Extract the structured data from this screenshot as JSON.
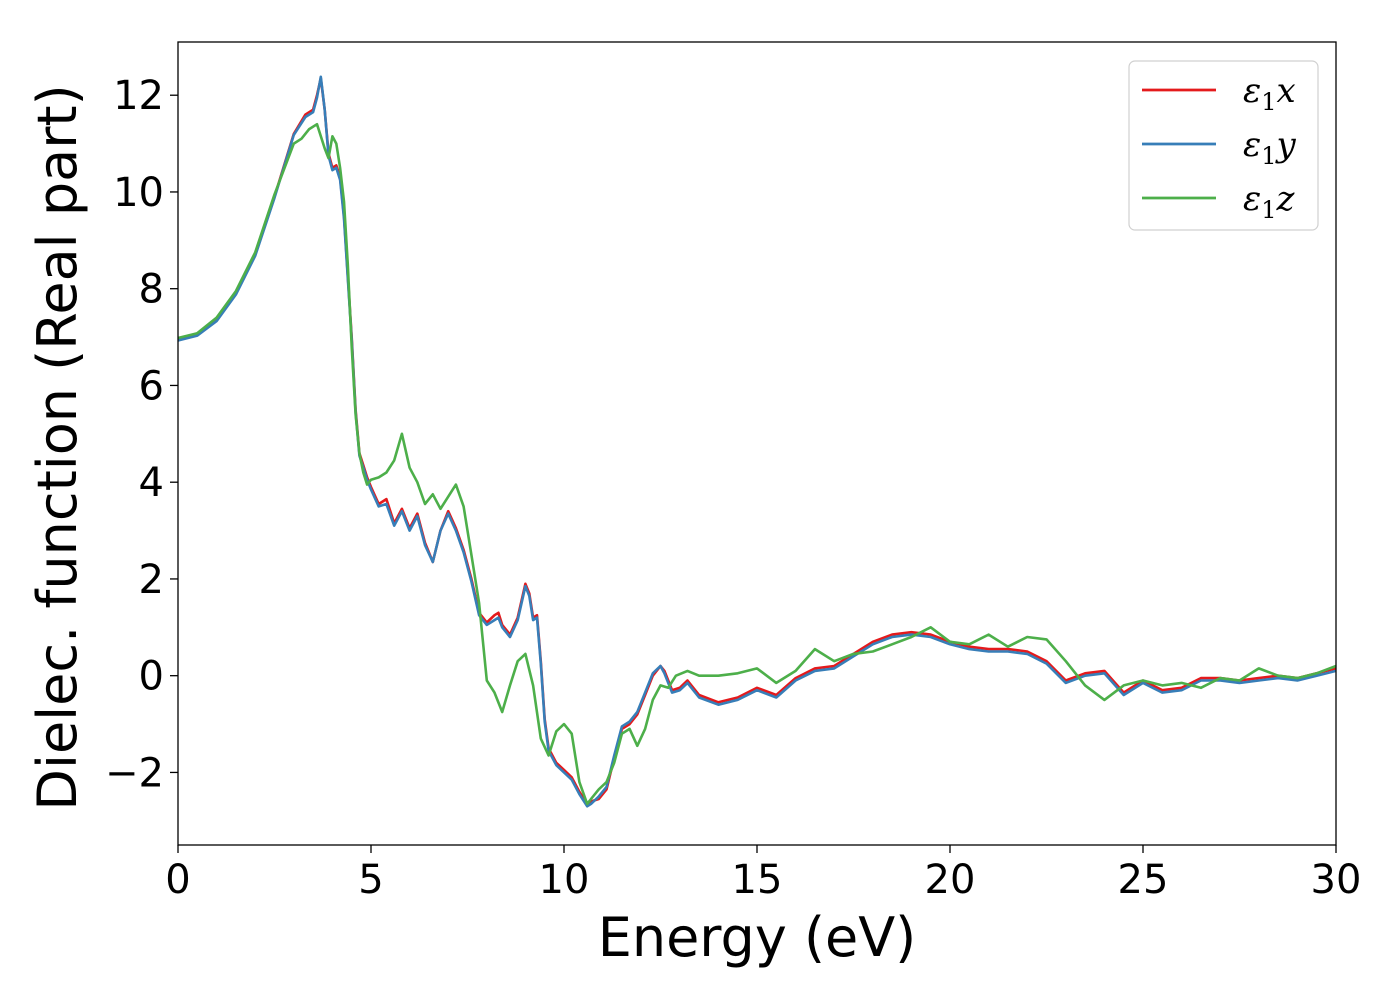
{
  "chart_data": {
    "type": "line",
    "title": "",
    "xlabel": "Energy (eV)",
    "ylabel": "Dielec. function (Real part)",
    "xlim": [
      0,
      30
    ],
    "ylim": [
      -3.5,
      13.1
    ],
    "xticks": [
      0,
      5,
      10,
      15,
      20,
      25,
      30
    ],
    "yticks": [
      -2,
      0,
      2,
      4,
      6,
      8,
      10,
      12
    ],
    "grid": false,
    "legend_position": "top-right",
    "series": [
      {
        "name": "ε1x",
        "symbol": "ε",
        "sub": "1",
        "axis": "x",
        "color": "#e41a1c",
        "x": [
          0,
          0.5,
          1,
          1.5,
          2,
          2.5,
          3,
          3.3,
          3.5,
          3.6,
          3.7,
          3.8,
          3.9,
          4.0,
          4.1,
          4.2,
          4.3,
          4.5,
          4.6,
          4.7,
          4.8,
          4.9,
          5.0,
          5.2,
          5.4,
          5.6,
          5.8,
          6.0,
          6.2,
          6.4,
          6.6,
          6.8,
          7.0,
          7.2,
          7.4,
          7.6,
          7.8,
          8.0,
          8.2,
          8.3,
          8.4,
          8.6,
          8.8,
          9.0,
          9.1,
          9.2,
          9.3,
          9.4,
          9.5,
          9.6,
          9.8,
          10.0,
          10.2,
          10.4,
          10.6,
          10.7,
          10.9,
          11.1,
          11.3,
          11.5,
          11.7,
          11.9,
          12.1,
          12.3,
          12.5,
          12.6,
          12.8,
          13.0,
          13.2,
          13.5,
          14.0,
          14.5,
          15.0,
          15.5,
          16.0,
          16.5,
          17.0,
          17.5,
          18.0,
          18.5,
          19.0,
          19.5,
          20.0,
          20.5,
          21.0,
          21.5,
          22.0,
          22.5,
          23.0,
          23.5,
          24.0,
          24.5,
          25.0,
          25.5,
          26.0,
          26.5,
          27.0,
          27.5,
          28.0,
          28.5,
          29.0,
          29.5,
          30.0
        ],
        "y": [
          6.95,
          7.05,
          7.35,
          7.9,
          8.7,
          9.9,
          11.2,
          11.6,
          11.7,
          12.0,
          12.35,
          11.7,
          10.8,
          10.5,
          10.55,
          10.3,
          9.5,
          7.0,
          5.5,
          4.6,
          4.35,
          4.1,
          3.9,
          3.55,
          3.65,
          3.15,
          3.45,
          3.05,
          3.35,
          2.75,
          2.35,
          3.0,
          3.4,
          3.05,
          2.6,
          2.0,
          1.3,
          1.1,
          1.25,
          1.3,
          1.05,
          0.85,
          1.2,
          1.9,
          1.7,
          1.2,
          1.25,
          0.3,
          -0.9,
          -1.5,
          -1.8,
          -1.95,
          -2.1,
          -2.4,
          -2.65,
          -2.6,
          -2.55,
          -2.35,
          -1.7,
          -1.1,
          -1.0,
          -0.8,
          -0.4,
          0.0,
          0.2,
          0.1,
          -0.3,
          -0.25,
          -0.1,
          -0.4,
          -0.55,
          -0.45,
          -0.25,
          -0.4,
          -0.05,
          0.15,
          0.2,
          0.45,
          0.7,
          0.85,
          0.9,
          0.85,
          0.7,
          0.6,
          0.55,
          0.55,
          0.5,
          0.3,
          -0.1,
          0.05,
          0.1,
          -0.35,
          -0.1,
          -0.3,
          -0.25,
          -0.05,
          -0.05,
          -0.1,
          -0.05,
          0.0,
          -0.05,
          0.05,
          0.15
        ]
      },
      {
        "name": "ε1y",
        "symbol": "ε",
        "sub": "1",
        "axis": "y",
        "color": "#377eb8",
        "x": [
          0,
          0.5,
          1,
          1.5,
          2,
          2.5,
          3,
          3.3,
          3.5,
          3.6,
          3.7,
          3.8,
          3.9,
          4.0,
          4.1,
          4.2,
          4.3,
          4.5,
          4.6,
          4.7,
          4.8,
          4.9,
          5.0,
          5.2,
          5.4,
          5.6,
          5.8,
          6.0,
          6.2,
          6.4,
          6.6,
          6.8,
          7.0,
          7.2,
          7.4,
          7.6,
          7.8,
          8.0,
          8.2,
          8.3,
          8.4,
          8.6,
          8.8,
          9.0,
          9.1,
          9.2,
          9.3,
          9.4,
          9.5,
          9.6,
          9.8,
          10.0,
          10.2,
          10.4,
          10.6,
          10.7,
          10.9,
          11.1,
          11.3,
          11.5,
          11.7,
          11.9,
          12.1,
          12.3,
          12.5,
          12.6,
          12.8,
          13.0,
          13.2,
          13.5,
          14.0,
          14.5,
          15.0,
          15.5,
          16.0,
          16.5,
          17.0,
          17.5,
          18.0,
          18.5,
          19.0,
          19.5,
          20.0,
          20.5,
          21.0,
          21.5,
          22.0,
          22.5,
          23.0,
          23.5,
          24.0,
          24.5,
          25.0,
          25.5,
          26.0,
          26.5,
          27.0,
          27.5,
          28.0,
          28.5,
          29.0,
          29.5,
          30.0
        ],
        "y": [
          6.93,
          7.03,
          7.33,
          7.88,
          8.68,
          9.88,
          11.18,
          11.55,
          11.65,
          11.95,
          12.38,
          11.7,
          10.75,
          10.45,
          10.5,
          10.25,
          9.45,
          6.95,
          5.45,
          4.55,
          4.3,
          4.05,
          3.85,
          3.5,
          3.55,
          3.1,
          3.4,
          3.0,
          3.3,
          2.7,
          2.35,
          3.0,
          3.35,
          3.0,
          2.55,
          1.95,
          1.25,
          1.05,
          1.15,
          1.2,
          1.0,
          0.8,
          1.15,
          1.85,
          1.65,
          1.15,
          1.2,
          0.25,
          -0.95,
          -1.55,
          -1.85,
          -2.0,
          -2.15,
          -2.45,
          -2.7,
          -2.65,
          -2.5,
          -2.3,
          -1.65,
          -1.05,
          -0.95,
          -0.75,
          -0.35,
          0.05,
          0.2,
          0.05,
          -0.35,
          -0.3,
          -0.15,
          -0.45,
          -0.6,
          -0.5,
          -0.3,
          -0.45,
          -0.1,
          0.1,
          0.15,
          0.4,
          0.65,
          0.8,
          0.85,
          0.8,
          0.65,
          0.55,
          0.5,
          0.5,
          0.45,
          0.25,
          -0.15,
          0.0,
          0.05,
          -0.4,
          -0.15,
          -0.35,
          -0.3,
          -0.1,
          -0.1,
          -0.15,
          -0.1,
          -0.05,
          -0.1,
          0.0,
          0.1
        ]
      },
      {
        "name": "ε1z",
        "symbol": "ε",
        "sub": "1",
        "axis": "z",
        "color": "#4daf4a",
        "x": [
          0,
          0.5,
          1,
          1.5,
          2,
          2.5,
          3,
          3.2,
          3.4,
          3.6,
          3.8,
          3.9,
          4.0,
          4.1,
          4.2,
          4.3,
          4.4,
          4.5,
          4.6,
          4.7,
          4.8,
          4.9,
          5.0,
          5.2,
          5.4,
          5.6,
          5.8,
          6.0,
          6.2,
          6.4,
          6.6,
          6.8,
          7.0,
          7.2,
          7.4,
          7.6,
          7.8,
          8.0,
          8.2,
          8.4,
          8.6,
          8.8,
          9.0,
          9.2,
          9.4,
          9.6,
          9.8,
          10.0,
          10.2,
          10.4,
          10.6,
          10.7,
          10.9,
          11.1,
          11.3,
          11.5,
          11.7,
          11.9,
          12.1,
          12.3,
          12.5,
          12.7,
          12.9,
          13.2,
          13.5,
          14.0,
          14.5,
          15.0,
          15.5,
          16.0,
          16.5,
          17.0,
          17.5,
          18.0,
          18.5,
          19.0,
          19.5,
          20.0,
          20.5,
          21.0,
          21.5,
          22.0,
          22.5,
          23.0,
          23.5,
          24.0,
          24.5,
          25.0,
          25.5,
          26.0,
          26.5,
          27.0,
          27.5,
          28.0,
          28.5,
          29.0,
          29.5,
          30.0
        ],
        "y": [
          6.98,
          7.08,
          7.4,
          7.95,
          8.75,
          9.95,
          11.0,
          11.1,
          11.3,
          11.4,
          10.9,
          10.7,
          11.15,
          11.0,
          10.5,
          9.8,
          8.5,
          6.8,
          5.4,
          4.6,
          4.2,
          3.95,
          4.05,
          4.1,
          4.2,
          4.45,
          5.0,
          4.3,
          4.0,
          3.55,
          3.75,
          3.45,
          3.7,
          3.95,
          3.5,
          2.5,
          1.5,
          -0.1,
          -0.35,
          -0.75,
          -0.2,
          0.3,
          0.45,
          -0.2,
          -1.3,
          -1.65,
          -1.15,
          -1.0,
          -1.2,
          -2.2,
          -2.65,
          -2.55,
          -2.35,
          -2.2,
          -1.8,
          -1.2,
          -1.1,
          -1.45,
          -1.1,
          -0.5,
          -0.2,
          -0.25,
          0.0,
          0.1,
          0.0,
          0.0,
          0.05,
          0.15,
          -0.15,
          0.1,
          0.55,
          0.3,
          0.45,
          0.5,
          0.65,
          0.8,
          1.0,
          0.7,
          0.65,
          0.85,
          0.6,
          0.8,
          0.75,
          0.3,
          -0.2,
          -0.5,
          -0.2,
          -0.1,
          -0.2,
          -0.15,
          -0.25,
          -0.05,
          -0.1,
          0.15,
          0.0,
          -0.05,
          0.05,
          0.2
        ]
      }
    ]
  }
}
